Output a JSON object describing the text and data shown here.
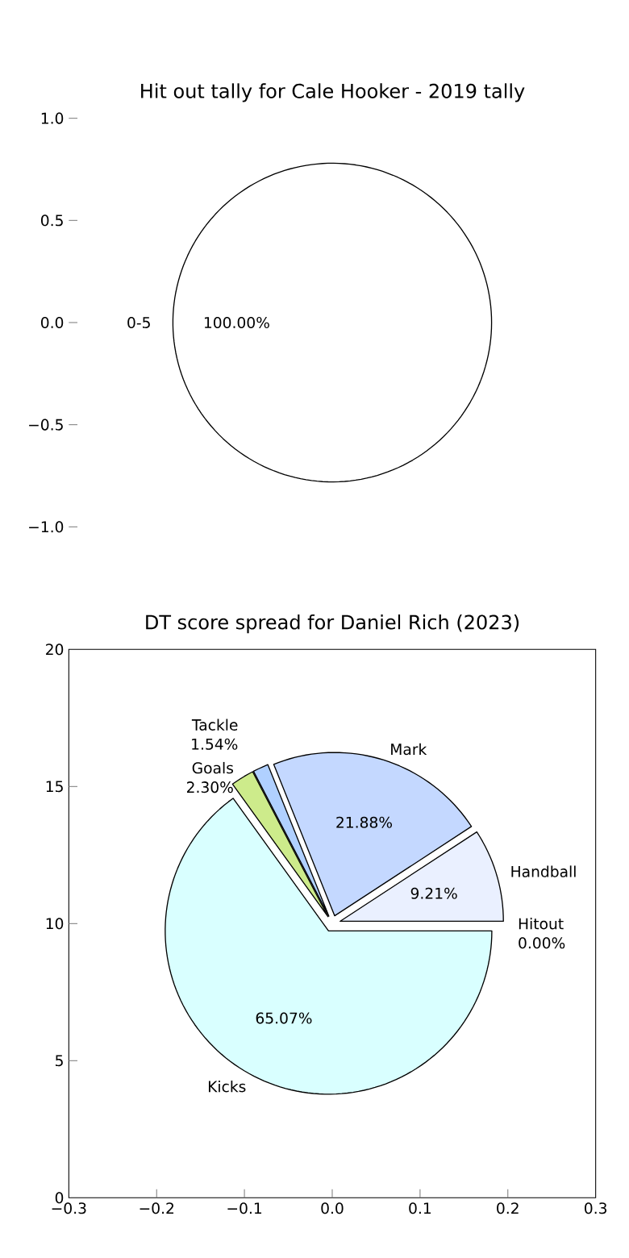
{
  "chart_data": [
    {
      "type": "pie",
      "title": "Hit out tally for Cale Hooker - 2019 tally",
      "categories": [
        "0-5"
      ],
      "values": [
        100
      ],
      "value_labels": [
        "100.00%"
      ],
      "colors": [
        "#ffffff"
      ],
      "annotations": [
        "1.0",
        "0.5",
        "0.0",
        "−0.5",
        "−1.0"
      ]
    },
    {
      "type": "pie",
      "title": "DT score spread for Daniel Rich (2023)",
      "categories": [
        "Hitout",
        "Handball",
        "Mark",
        "Tackle",
        "Goals",
        "Kicks"
      ],
      "values": [
        0,
        9.21,
        21.88,
        1.54,
        2.3,
        65.07
      ],
      "value_labels": [
        "0.00%",
        "9.21%",
        "21.88%",
        "1.54%",
        "2.30%",
        "65.07%"
      ],
      "colors": [
        "#aaaaaa",
        "#eaf0ff",
        "#c4d8ff",
        "#b0d0ff",
        "#cdeb8b",
        "#d9ffff"
      ],
      "annotations": [
        "20",
        "15",
        "10",
        "5",
        "0",
        "−0.3",
        "−0.2",
        "−0.1",
        "0.0",
        "0.1",
        "0.2",
        "0.3"
      ]
    }
  ]
}
